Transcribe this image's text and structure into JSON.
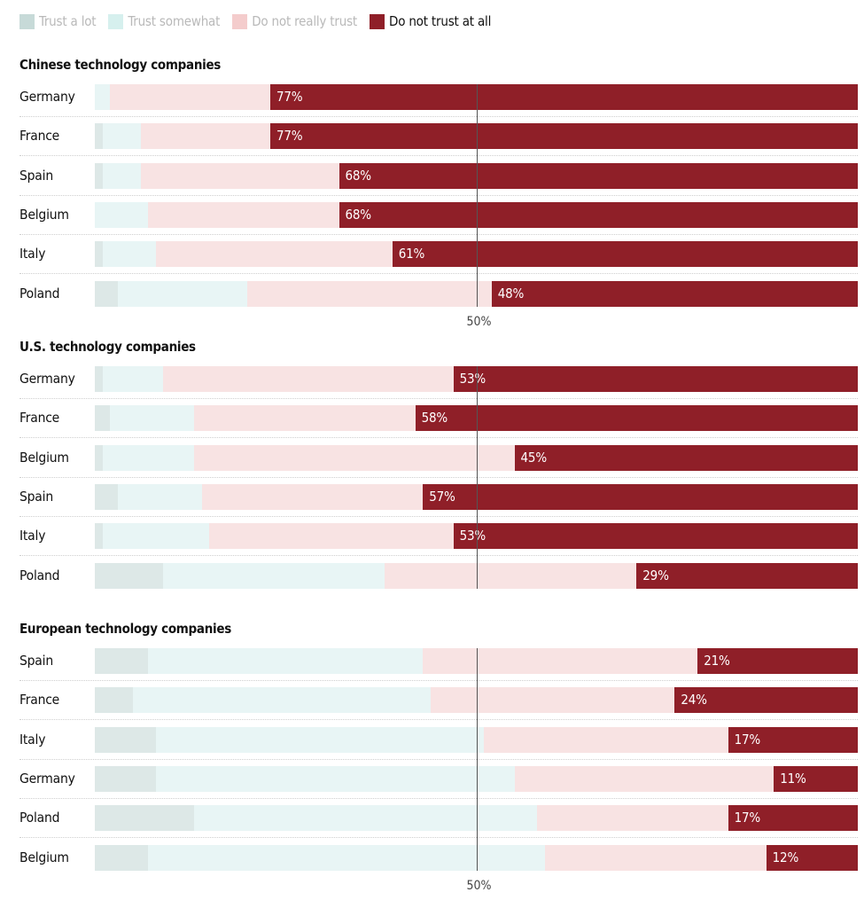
{
  "chart_data": {
    "type": "bar",
    "orientation": "horizontal-stacked",
    "title": "",
    "xlabel": "",
    "ylabel": "",
    "xlim": [
      0,
      100
    ],
    "unit": "%",
    "reference_line": {
      "value": 50,
      "label": "50%"
    },
    "legend_position": "top-left",
    "legend": [
      {
        "key": "trust_a_lot",
        "label": "Trust a lot",
        "color": "#dde8e7",
        "swatch_color": "#c7dad8",
        "active": false
      },
      {
        "key": "trust_somewhat",
        "label": "Trust somewhat",
        "color": "#e8f5f5",
        "swatch_color": "#d6f0ee",
        "active": false
      },
      {
        "key": "not_really",
        "label": "Do not really trust",
        "color": "#f8e3e3",
        "swatch_color": "#f4cccc",
        "active": false
      },
      {
        "key": "not_at_all",
        "label": "Do not trust at all",
        "color": "#8f1f28",
        "swatch_color": "#8f1f28",
        "active": true
      }
    ],
    "panels": [
      {
        "title": "Chinese technology companies",
        "show_axis_label": true,
        "rows": [
          {
            "country": "Germany",
            "values": [
              0,
              2,
              21,
              77
            ],
            "label": "77%"
          },
          {
            "country": "France",
            "values": [
              1,
              5,
              17,
              77
            ],
            "label": "77%"
          },
          {
            "country": "Spain",
            "values": [
              1,
              5,
              26,
              68
            ],
            "label": "68%"
          },
          {
            "country": "Belgium",
            "values": [
              0,
              7,
              25,
              68
            ],
            "label": "68%"
          },
          {
            "country": "Italy",
            "values": [
              1,
              7,
              31,
              61
            ],
            "label": "61%"
          },
          {
            "country": "Poland",
            "values": [
              3,
              17,
              32,
              48
            ],
            "label": "48%"
          }
        ]
      },
      {
        "title": "U.S. technology companies",
        "show_axis_label": false,
        "rows": [
          {
            "country": "Germany",
            "values": [
              1,
              8,
              38,
              53
            ],
            "label": "53%"
          },
          {
            "country": "France",
            "values": [
              2,
              11,
              29,
              58
            ],
            "label": "58%"
          },
          {
            "country": "Belgium",
            "values": [
              1,
              12,
              42,
              45
            ],
            "label": "45%"
          },
          {
            "country": "Spain",
            "values": [
              3,
              11,
              29,
              57
            ],
            "label": "57%"
          },
          {
            "country": "Italy",
            "values": [
              1,
              14,
              32,
              53
            ],
            "label": "53%"
          },
          {
            "country": "Poland",
            "values": [
              9,
              29,
              33,
              29
            ],
            "label": "29%"
          }
        ]
      },
      {
        "title": "European technology companies",
        "show_axis_label": true,
        "rows": [
          {
            "country": "Spain",
            "values": [
              7,
              36,
              36,
              21
            ],
            "label": "21%"
          },
          {
            "country": "France",
            "values": [
              5,
              39,
              32,
              24
            ],
            "label": "24%"
          },
          {
            "country": "Italy",
            "values": [
              8,
              43,
              32,
              17
            ],
            "label": "17%"
          },
          {
            "country": "Germany",
            "values": [
              8,
              47,
              34,
              11
            ],
            "label": "11%"
          },
          {
            "country": "Poland",
            "values": [
              13,
              45,
              25,
              17
            ],
            "label": "17%"
          },
          {
            "country": "Belgium",
            "values": [
              7,
              52,
              29,
              12
            ],
            "label": "12%"
          }
        ]
      }
    ]
  }
}
